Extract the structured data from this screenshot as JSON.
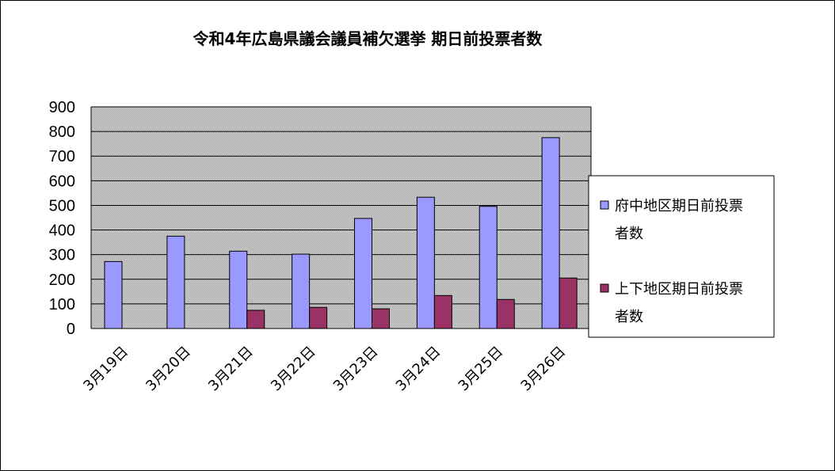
{
  "chart_data": {
    "type": "bar",
    "title": "令和4年広島県議会議員補欠選挙 期日前投票者数",
    "categories": [
      "3月19日",
      "3月20日",
      "3月21日",
      "3月22日",
      "3月23日",
      "3月24日",
      "3月25日",
      "3月26日"
    ],
    "series": [
      {
        "name_lines": [
          "府中地区期日前投票",
          "者数"
        ],
        "color": "#9999ff",
        "values": [
          272,
          375,
          314,
          302,
          447,
          533,
          496,
          775
        ]
      },
      {
        "name_lines": [
          "上下地区期日前投票",
          "者数"
        ],
        "color": "#993366",
        "values": [
          null,
          null,
          74,
          86,
          80,
          134,
          118,
          205
        ]
      }
    ],
    "ylim": [
      0,
      900
    ],
    "yticks": [
      "0",
      "100",
      "200",
      "300",
      "400",
      "500",
      "600",
      "700",
      "800",
      "900"
    ],
    "grid": true,
    "plot_background": "#c0c0c0",
    "legend_position": "right"
  }
}
